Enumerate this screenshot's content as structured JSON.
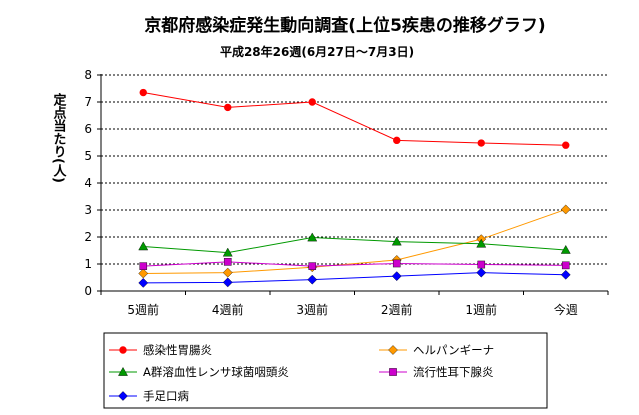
{
  "chart_data": {
    "type": "line",
    "title": "京都府感染症発生動向調査(上位5疾患の推移グラフ)",
    "subtitle": "平成28年26週(6月27日〜7月3日)",
    "xlabel": "",
    "ylabel": "定点当たり(人)",
    "ylim": [
      0,
      8
    ],
    "yticks": [
      0,
      1,
      2,
      3,
      4,
      5,
      6,
      7,
      8
    ],
    "grid": true,
    "legend_position": "bottom",
    "categories": [
      "5週前",
      "4週前",
      "3週前",
      "2週前",
      "1週前",
      "今週"
    ],
    "series": [
      {
        "name": "感染性胃腸炎",
        "color": "#ff0000",
        "marker": "circle",
        "values": [
          7.35,
          6.8,
          7.0,
          5.58,
          5.48,
          5.4
        ]
      },
      {
        "name": "ヘルパンギーナ",
        "color": "#ff9900",
        "marker": "diamond",
        "values": [
          0.65,
          0.68,
          0.88,
          1.15,
          1.92,
          3.02
        ]
      },
      {
        "name": "A群溶血性レンサ球菌咽頭炎",
        "color": "#009900",
        "marker": "triangle",
        "values": [
          1.65,
          1.42,
          1.98,
          1.83,
          1.75,
          1.52
        ]
      },
      {
        "name": "流行性耳下腺炎",
        "color": "#cc00cc",
        "marker": "square",
        "values": [
          0.92,
          1.08,
          0.92,
          1.02,
          0.98,
          0.95
        ]
      },
      {
        "name": "手足口病",
        "color": "#0000ff",
        "marker": "diamond",
        "values": [
          0.3,
          0.32,
          0.42,
          0.55,
          0.68,
          0.6
        ]
      }
    ]
  }
}
